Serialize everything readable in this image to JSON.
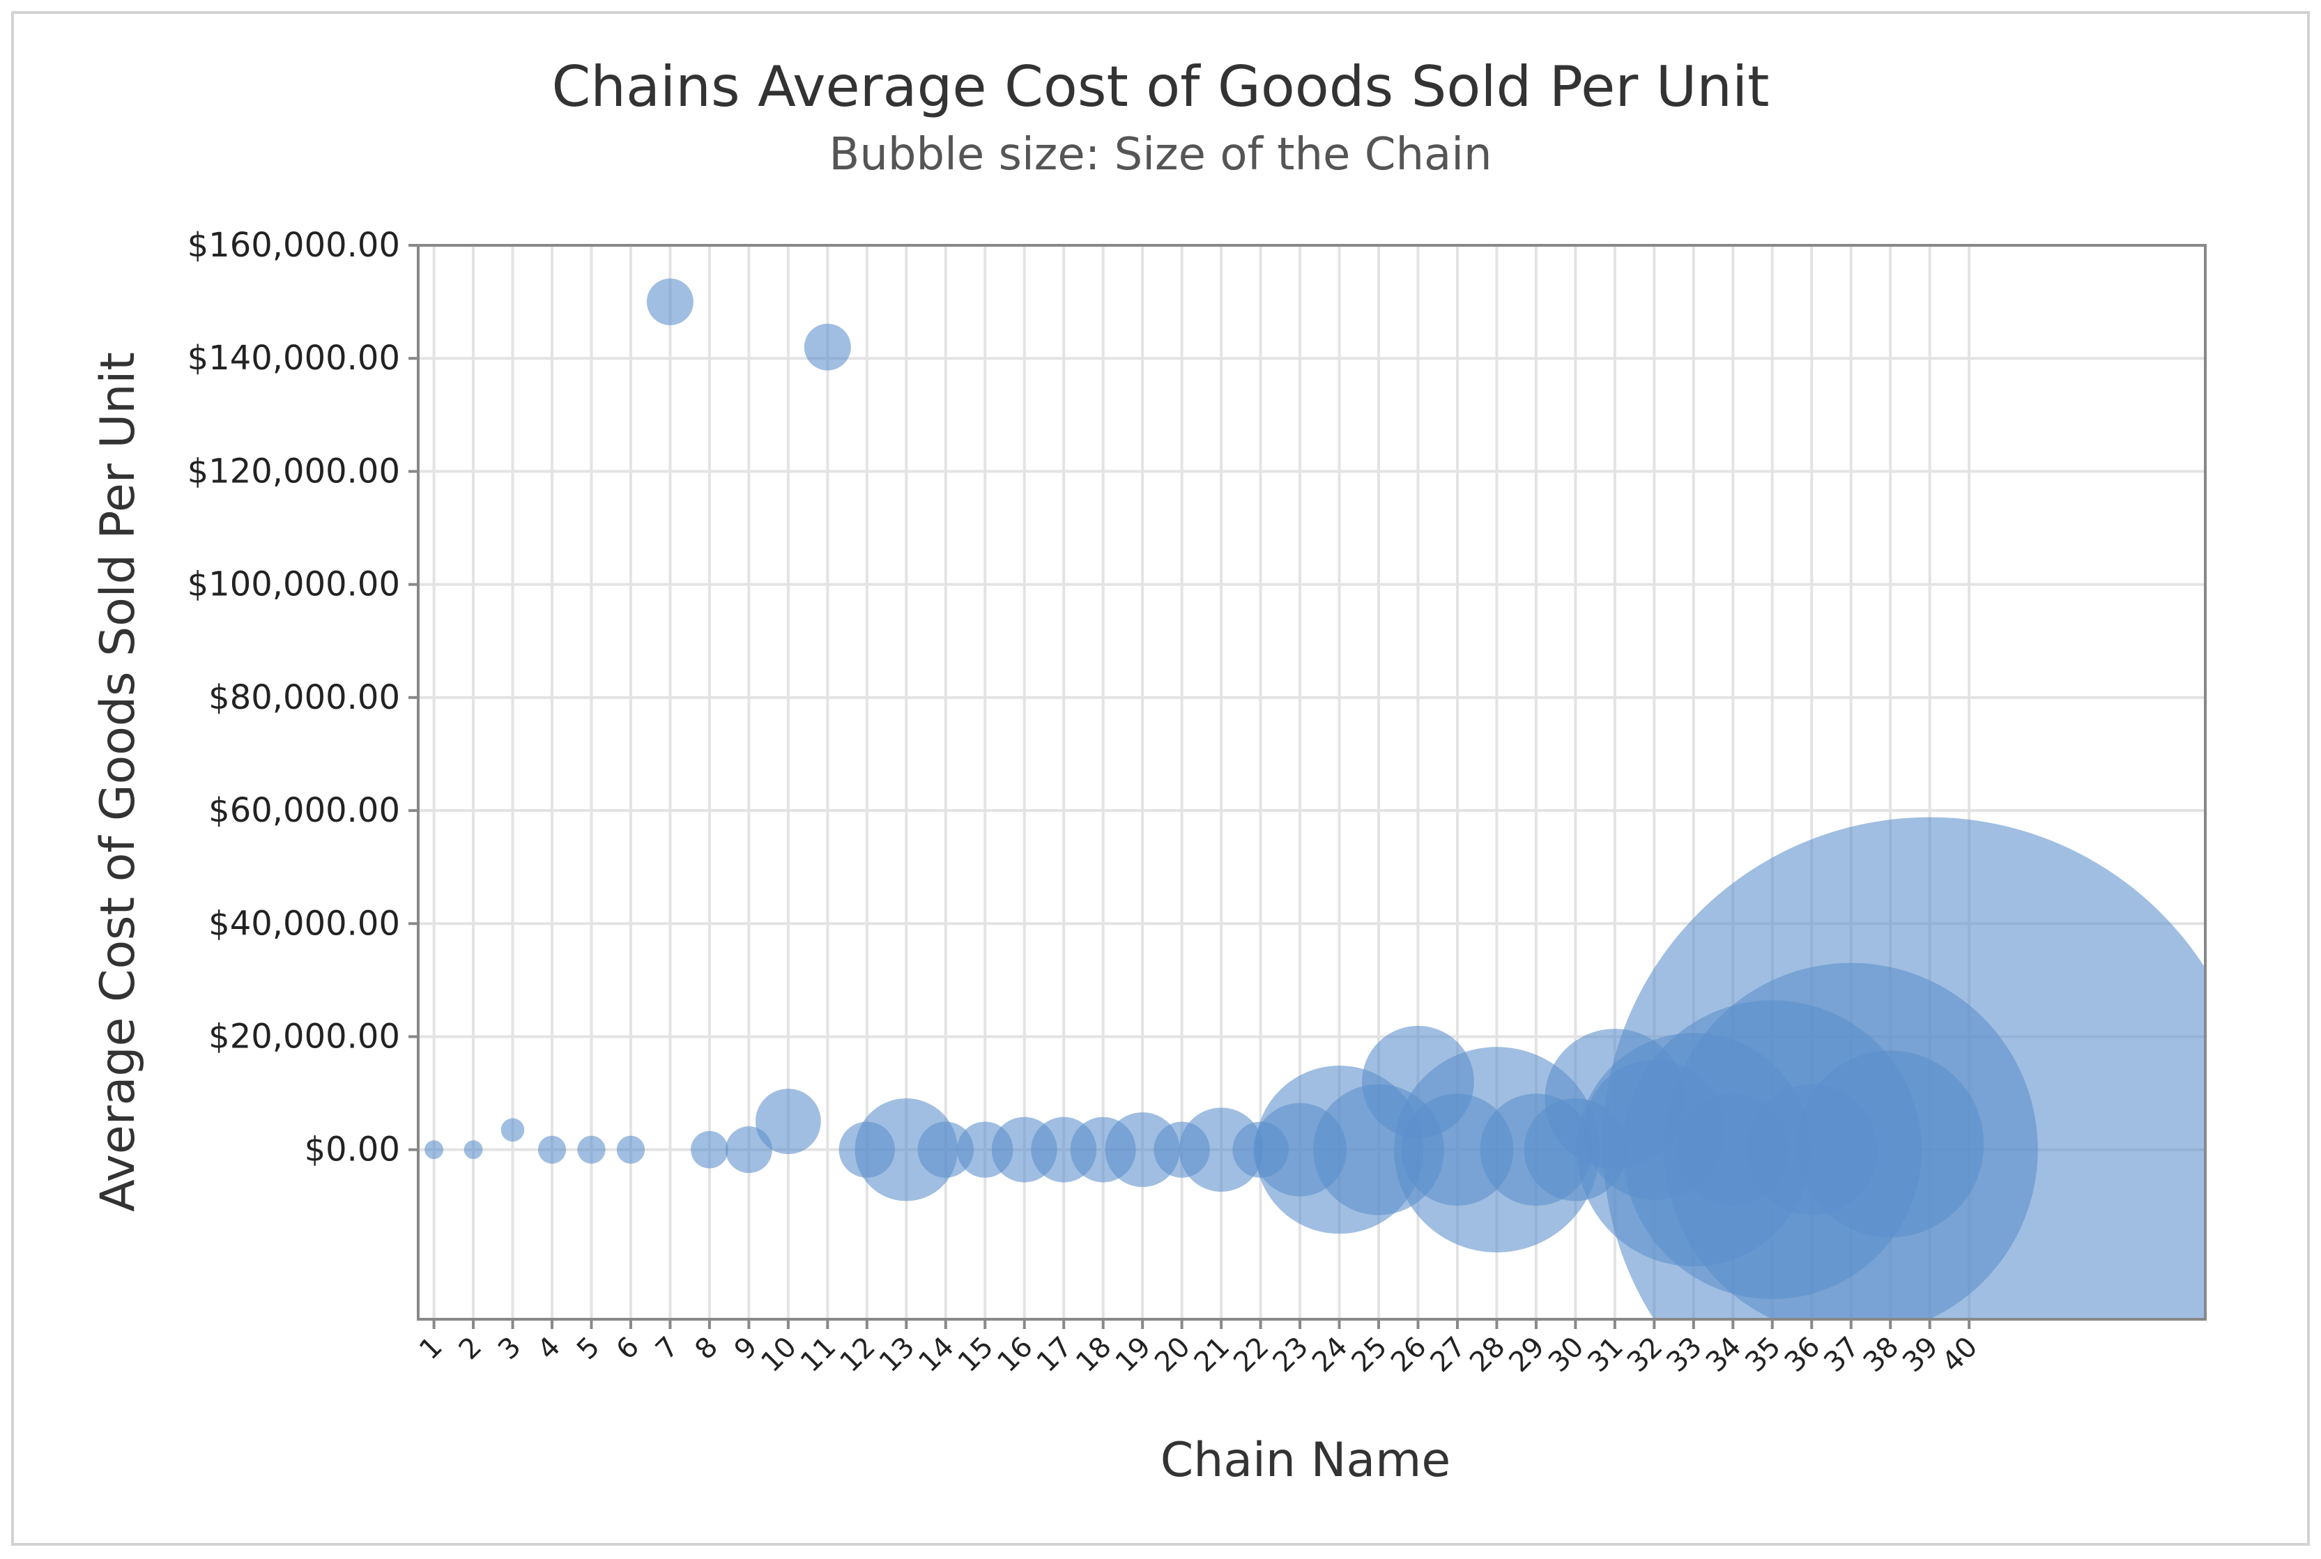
{
  "chart_data": {
    "type": "scatter",
    "title": "Chains Average Cost of Goods Sold Per Unit",
    "subtitle": "Bubble size: Size of the Chain",
    "xlabel": "Chain Name",
    "ylabel": "Average Cost of Goods Sold Per Unit",
    "xlim": [
      0.6,
      46
    ],
    "ylim": [
      -30000,
      160000
    ],
    "grid": true,
    "bubble_color": "#5B8FCC",
    "frame_color": "#888888",
    "grid_color": "#e3e3e3",
    "yticks": [
      {
        "value": 160000,
        "label": "$160,000.00"
      },
      {
        "value": 140000,
        "label": "$140,000.00"
      },
      {
        "value": 120000,
        "label": "$120,000.00"
      },
      {
        "value": 100000,
        "label": "$100,000.00"
      },
      {
        "value": 80000,
        "label": "$80,000.00"
      },
      {
        "value": 60000,
        "label": "$60,000.00"
      },
      {
        "value": 40000,
        "label": "$40,000.00"
      },
      {
        "value": 20000,
        "label": "$20,000.00"
      },
      {
        "value": 0,
        "label": "$0.00"
      }
    ],
    "xticks": [
      "1",
      "2",
      "3",
      "4",
      "5",
      "6",
      "7",
      "8",
      "9",
      "10",
      "11",
      "12",
      "13",
      "14",
      "15",
      "16",
      "17",
      "18",
      "19",
      "20",
      "21",
      "22",
      "23",
      "24",
      "25",
      "26",
      "27",
      "28",
      "29",
      "30",
      "31",
      "32",
      "33",
      "34",
      "35",
      "36",
      "37",
      "38",
      "39",
      "40"
    ],
    "points": [
      {
        "x": 1,
        "y": 0,
        "size": 2
      },
      {
        "x": 2,
        "y": 0,
        "size": 2
      },
      {
        "x": 3,
        "y": 3500,
        "size": 2.5
      },
      {
        "x": 4,
        "y": 0,
        "size": 3
      },
      {
        "x": 5,
        "y": 0,
        "size": 3
      },
      {
        "x": 6,
        "y": 0,
        "size": 3
      },
      {
        "x": 7,
        "y": 150000,
        "size": 5
      },
      {
        "x": 8,
        "y": 0,
        "size": 4
      },
      {
        "x": 9,
        "y": 0,
        "size": 5
      },
      {
        "x": 10,
        "y": 5000,
        "size": 7
      },
      {
        "x": 11,
        "y": 142000,
        "size": 5
      },
      {
        "x": 12,
        "y": 0,
        "size": 6
      },
      {
        "x": 13,
        "y": 0,
        "size": 11
      },
      {
        "x": 14,
        "y": 0,
        "size": 6
      },
      {
        "x": 15,
        "y": 0,
        "size": 6
      },
      {
        "x": 16,
        "y": 0,
        "size": 7
      },
      {
        "x": 17,
        "y": 0,
        "size": 7
      },
      {
        "x": 18,
        "y": 0,
        "size": 7
      },
      {
        "x": 19,
        "y": 0,
        "size": 8
      },
      {
        "x": 20,
        "y": 0,
        "size": 6
      },
      {
        "x": 21,
        "y": 0,
        "size": 9
      },
      {
        "x": 22,
        "y": 0,
        "size": 6
      },
      {
        "x": 23,
        "y": 0,
        "size": 10
      },
      {
        "x": 24,
        "y": 0,
        "size": 18
      },
      {
        "x": 25,
        "y": 0,
        "size": 14
      },
      {
        "x": 26,
        "y": 12000,
        "size": 12
      },
      {
        "x": 27,
        "y": 0,
        "size": 12
      },
      {
        "x": 28,
        "y": 0,
        "size": 22
      },
      {
        "x": 29,
        "y": 0,
        "size": 12
      },
      {
        "x": 30,
        "y": 0,
        "size": 11
      },
      {
        "x": 31,
        "y": 9000,
        "size": 15
      },
      {
        "x": 32,
        "y": 3500,
        "size": 15
      },
      {
        "x": 33,
        "y": 0,
        "size": 25
      },
      {
        "x": 34,
        "y": 0,
        "size": 12
      },
      {
        "x": 35,
        "y": 0,
        "size": 32
      },
      {
        "x": 36,
        "y": 0,
        "size": 14
      },
      {
        "x": 37,
        "y": 0,
        "size": 40
      },
      {
        "x": 38,
        "y": 1000,
        "size": 20
      },
      {
        "x": 39,
        "y": 1000,
        "size": 70
      }
    ]
  }
}
